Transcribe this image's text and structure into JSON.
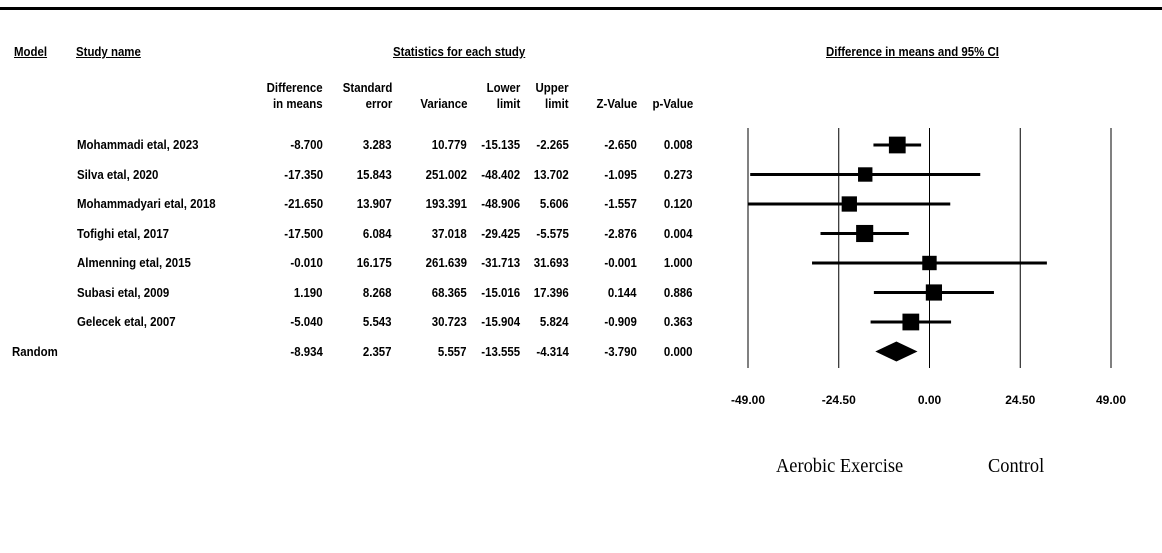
{
  "chart_data": {
    "type": "forest",
    "headers": {
      "model": "Model",
      "study_name": "Study name",
      "stats_group": "Statistics for each study",
      "plot_title": "Difference in means and 95% CI",
      "columns": {
        "diff_line1": "Difference",
        "diff_line2": "in means",
        "se_line1": "Standard",
        "se_line2": "error",
        "variance": "Variance",
        "lower_line1": "Lower",
        "lower_line2": "limit",
        "upper_line1": "Upper",
        "upper_line2": "limit",
        "z": "Z-Value",
        "p": "p-Value"
      }
    },
    "studies": [
      {
        "name": "Mohammadi etal, 2023",
        "diff": -8.7,
        "diff_text": "-8.700",
        "se": "3.283",
        "variance": "10.779",
        "lower": -15.135,
        "lower_text": "-15.135",
        "upper": -2.265,
        "upper_text": "-2.265",
        "z": "-2.650",
        "p": "0.008",
        "weight": 0.93
      },
      {
        "name": "Silva etal, 2020",
        "diff": -17.35,
        "diff_text": "-17.350",
        "se": "15.843",
        "variance": "251.002",
        "lower": -48.402,
        "lower_text": "-48.402",
        "upper": 13.702,
        "upper_text": "13.702",
        "z": "-1.095",
        "p": "0.273",
        "weight": 0.8
      },
      {
        "name": "Mohammadyari etal, 2018",
        "diff": -21.65,
        "diff_text": "-21.650",
        "se": "13.907",
        "variance": "193.391",
        "lower": -48.906,
        "lower_text": "-48.906",
        "upper": 5.606,
        "upper_text": "5.606",
        "z": "-1.557",
        "p": "0.120",
        "weight": 0.85
      },
      {
        "name": "Tofighi etal, 2017",
        "diff": -17.5,
        "diff_text": "-17.500",
        "se": "6.084",
        "variance": "37.018",
        "lower": -29.425,
        "lower_text": "-29.425",
        "upper": -5.575,
        "upper_text": "-5.575",
        "z": "-2.876",
        "p": "0.004",
        "weight": 0.95
      },
      {
        "name": "Almenning etal, 2015",
        "diff": -0.01,
        "diff_text": "-0.010",
        "se": "16.175",
        "variance": "261.639",
        "lower": -31.713,
        "lower_text": "-31.713",
        "upper": 31.693,
        "upper_text": "31.693",
        "z": "-0.001",
        "p": "1.000",
        "weight": 0.8
      },
      {
        "name": "Subasi etal, 2009",
        "diff": 1.19,
        "diff_text": "1.190",
        "se": "8.268",
        "variance": "68.365",
        "lower": -15.016,
        "lower_text": "-15.016",
        "upper": 17.396,
        "upper_text": "17.396",
        "z": "0.144",
        "p": "0.886",
        "weight": 0.9
      },
      {
        "name": "Gelecek etal, 2007",
        "diff": -5.04,
        "diff_text": "-5.040",
        "se": "5.543",
        "variance": "30.723",
        "lower": -15.904,
        "lower_text": "-15.904",
        "upper": 5.824,
        "upper_text": "5.824",
        "z": "-0.909",
        "p": "0.363",
        "weight": 0.93
      }
    ],
    "summary": {
      "model": "Random",
      "diff": -8.934,
      "diff_text": "-8.934",
      "se": "2.357",
      "variance": "5.557",
      "lower": -13.555,
      "lower_text": "-13.555",
      "upper": -4.314,
      "upper_text": "-4.314",
      "z": "-3.790",
      "p": "0.000"
    },
    "x_axis": {
      "ticks": [
        -49,
        -24.5,
        0,
        24.5,
        49
      ],
      "tick_labels": [
        "-49.00",
        "-24.50",
        "0.00",
        "24.50",
        "49.00"
      ],
      "xlim": [
        -49,
        49
      ],
      "left_label": "Aerobic Exercise",
      "right_label": "Control"
    }
  }
}
